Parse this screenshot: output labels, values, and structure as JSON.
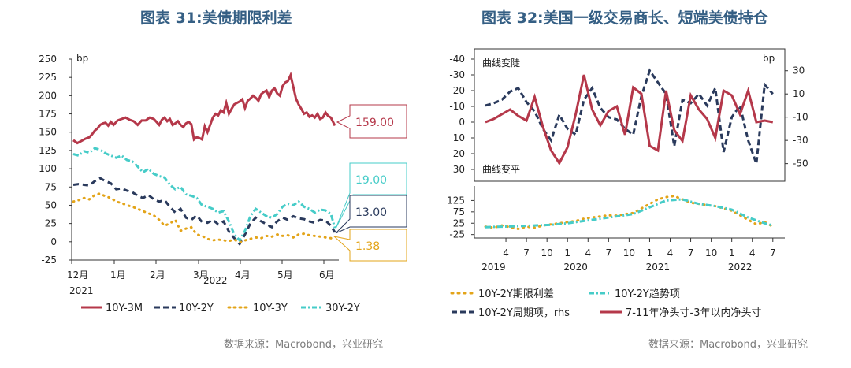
{
  "colors": {
    "title": "#355f84",
    "red": "#b5384a",
    "navy": "#2a3a5c",
    "gold": "#e3a419",
    "cyan": "#46ccc8",
    "text": "#222222",
    "source": "#7b7b7b"
  },
  "left_title": "图表 31:美债期限利差",
  "right_title": "图表 32:美国一级交易商长、短端美债持仓",
  "left_source": "数据来源：Macrobond，兴业研究",
  "right_source": "数据来源：Macrobond，兴业研究",
  "chart_data": [
    {
      "type": "line",
      "unit_label": "bp",
      "ylim": [
        -25,
        250
      ],
      "yticks": [
        "250",
        "225",
        "200",
        "175",
        "150",
        "125",
        "100",
        "75",
        "50",
        "25",
        "0",
        "-25"
      ],
      "xticks": [
        "12月",
        "1月",
        "2月",
        "3月",
        "4月",
        "5月",
        "6月"
      ],
      "year_labels": [
        "2021",
        "2022"
      ],
      "legend": [
        "10Y-3M",
        "10Y-2Y",
        "10Y-3Y",
        "30Y-2Y"
      ],
      "callouts": [
        "159.00",
        "19.00",
        "13.00",
        "1.38"
      ],
      "series": [
        {
          "name": "10Y-3M",
          "x": [
            0,
            3,
            6,
            9,
            12,
            14,
            16,
            18,
            20,
            22,
            24,
            26,
            28,
            30,
            33,
            36,
            39,
            42,
            45,
            48,
            51,
            54,
            57,
            60,
            62,
            64,
            66,
            68,
            70,
            72,
            74,
            76,
            78,
            80,
            82,
            84,
            86,
            88,
            90,
            92,
            94,
            96,
            98,
            100,
            102,
            104,
            106,
            108,
            110,
            112,
            114,
            116,
            118,
            120,
            122,
            124,
            126,
            128,
            130,
            132,
            134,
            136,
            138,
            140,
            142,
            144,
            146,
            148,
            150,
            152,
            154,
            156,
            158,
            160,
            162,
            164,
            166,
            168,
            170,
            172,
            174,
            176,
            178,
            180,
            182,
            184,
            186,
            188,
            190,
            192,
            195
          ],
          "y": [
            139,
            135,
            138,
            141,
            143,
            147,
            152,
            155,
            160,
            162,
            163,
            159,
            164,
            160,
            166,
            168,
            170,
            167,
            165,
            160,
            166,
            166,
            170,
            168,
            164,
            160,
            167,
            170,
            165,
            168,
            160,
            162,
            165,
            160,
            157,
            162,
            164,
            161,
            140,
            143,
            142,
            140,
            158,
            150,
            160,
            170,
            175,
            173,
            180,
            177,
            190,
            175,
            182,
            188,
            190,
            192,
            195,
            183,
            193,
            196,
            200,
            197,
            193,
            202,
            205,
            207,
            198,
            207,
            210,
            203,
            200,
            213,
            218,
            220,
            228,
            212,
            196,
            188,
            182,
            175,
            177,
            171,
            173,
            170,
            175,
            168,
            170,
            177,
            172,
            170,
            159
          ]
        },
        {
          "name": "10Y-2Y",
          "x": [
            0,
            4,
            8,
            12,
            16,
            20,
            24,
            28,
            32,
            36,
            40,
            44,
            48,
            52,
            56,
            60,
            64,
            68,
            72,
            76,
            80,
            84,
            88,
            92,
            96,
            100,
            104,
            108,
            112,
            116,
            120,
            124,
            128,
            132,
            136,
            140,
            144,
            148,
            152,
            156,
            160,
            164,
            168,
            172,
            176,
            180,
            184,
            188,
            192,
            195
          ],
          "y": [
            78,
            79,
            78,
            77,
            83,
            87,
            83,
            80,
            72,
            73,
            70,
            68,
            63,
            60,
            64,
            58,
            55,
            57,
            48,
            40,
            45,
            33,
            30,
            36,
            27,
            26,
            30,
            24,
            28,
            14,
            5,
            -3,
            10,
            25,
            33,
            28,
            24,
            20,
            28,
            33,
            30,
            35,
            32,
            31,
            28,
            26,
            30,
            29,
            22,
            13
          ]
        },
        {
          "name": "10Y-3Y",
          "x": [
            0,
            4,
            8,
            12,
            16,
            20,
            24,
            28,
            32,
            36,
            40,
            44,
            48,
            52,
            56,
            60,
            64,
            68,
            72,
            76,
            80,
            84,
            88,
            92,
            96,
            100,
            104,
            108,
            112,
            116,
            120,
            124,
            128,
            132,
            136,
            140,
            144,
            148,
            152,
            156,
            160,
            164,
            168,
            172,
            176,
            180,
            184,
            188,
            192,
            195
          ],
          "y": [
            55,
            57,
            60,
            58,
            64,
            66,
            62,
            60,
            55,
            53,
            50,
            48,
            45,
            42,
            39,
            36,
            30,
            22,
            25,
            30,
            15,
            18,
            20,
            10,
            8,
            4,
            2,
            3,
            2,
            1,
            3,
            -1,
            2,
            4,
            6,
            5,
            8,
            7,
            10,
            8,
            9,
            6,
            10,
            11,
            9,
            8,
            7,
            6,
            5,
            1.38
          ]
        },
        {
          "name": "30Y-2Y",
          "x": [
            0,
            4,
            8,
            12,
            16,
            20,
            24,
            28,
            32,
            36,
            40,
            44,
            48,
            52,
            56,
            60,
            64,
            68,
            72,
            76,
            80,
            84,
            88,
            92,
            96,
            100,
            104,
            108,
            112,
            116,
            120,
            124,
            128,
            132,
            136,
            140,
            144,
            148,
            152,
            156,
            160,
            164,
            168,
            172,
            176,
            180,
            184,
            188,
            192,
            195
          ],
          "y": [
            120,
            118,
            124,
            122,
            128,
            126,
            121,
            118,
            115,
            118,
            112,
            110,
            103,
            95,
            100,
            93,
            90,
            88,
            78,
            72,
            75,
            65,
            63,
            60,
            50,
            48,
            45,
            40,
            42,
            28,
            10,
            2,
            15,
            35,
            45,
            40,
            35,
            33,
            38,
            48,
            52,
            50,
            55,
            48,
            45,
            40,
            44,
            43,
            38,
            19
          ]
        }
      ]
    },
    {
      "type": "line",
      "unit_label": "bp",
      "upper_panel": {
        "ylim_left": [
          30,
          -40
        ],
        "yticks_left": [
          "-40",
          "-30",
          "-20",
          "-10",
          "0",
          "10",
          "20",
          "30"
        ],
        "ylim_right": [
          -55,
          40
        ],
        "yticks_right": [
          "30",
          "10",
          "-10",
          "-30",
          "-50"
        ],
        "annotations": [
          "曲线变陡",
          "曲线变平"
        ]
      },
      "lower_panel": {
        "ylim": [
          -40,
          175
        ],
        "yticks": [
          "125",
          "75",
          "25",
          "-25"
        ]
      },
      "xticks": [
        "4",
        "7",
        "10",
        "1",
        "4",
        "7",
        "10",
        "1",
        "4",
        "7",
        "10",
        "1",
        "4",
        "7"
      ],
      "year_labels": [
        "2019",
        "2020",
        "2021",
        "2022"
      ],
      "legend": [
        "10Y-2Y期限利差",
        "10Y-2Y趋势项",
        "10Y-2Y周期项，rhs",
        "7-11年净头寸-3年以内净头寸"
      ],
      "series": [
        {
          "name": "7-11年净头寸-3年以内净头寸",
          "axis": "left",
          "x": [
            2019.0,
            2019.1,
            2019.2,
            2019.3,
            2019.4,
            2019.5,
            2019.6,
            2019.7,
            2019.8,
            2019.9,
            2020.0,
            2020.1,
            2020.2,
            2020.3,
            2020.4,
            2020.5,
            2020.6,
            2020.7,
            2020.8,
            2020.9,
            2021.0,
            2021.1,
            2021.2,
            2021.3,
            2021.4,
            2021.5,
            2021.6,
            2021.7,
            2021.8,
            2021.9,
            2022.0,
            2022.1,
            2022.2,
            2022.3,
            2022.4,
            2022.5
          ],
          "y": [
            0,
            -2,
            -5,
            -8,
            -4,
            -1,
            -16,
            3,
            18,
            26,
            16,
            -5,
            -30,
            -8,
            2,
            -7,
            -10,
            8,
            -22,
            -18,
            15,
            18,
            -20,
            5,
            12,
            -17,
            -8,
            -2,
            10,
            -20,
            -17,
            -5,
            -20,
            0,
            -1,
            0
          ]
        },
        {
          "name": "10Y-2Y周期项，rhs",
          "axis": "right",
          "x": [
            2019.0,
            2019.1,
            2019.2,
            2019.3,
            2019.4,
            2019.5,
            2019.6,
            2019.7,
            2019.8,
            2019.9,
            2020.0,
            2020.1,
            2020.2,
            2020.3,
            2020.4,
            2020.5,
            2020.6,
            2020.7,
            2020.8,
            2020.9,
            2021.0,
            2021.1,
            2021.2,
            2021.3,
            2021.4,
            2021.5,
            2021.6,
            2021.7,
            2021.8,
            2021.9,
            2022.0,
            2022.1,
            2022.2,
            2022.3,
            2022.4,
            2022.5
          ],
          "y": [
            0,
            2,
            5,
            12,
            15,
            3,
            -5,
            -20,
            -30,
            -8,
            -20,
            -25,
            5,
            15,
            -2,
            -10,
            -12,
            -20,
            -25,
            8,
            30,
            20,
            10,
            -35,
            5,
            2,
            10,
            0,
            15,
            -40,
            -10,
            0,
            -30,
            -50,
            18,
            10
          ]
        },
        {
          "name": "10Y-2Y期限利差",
          "axis": "lower",
          "x": [
            2019.0,
            2019.1,
            2019.2,
            2019.3,
            2019.4,
            2019.5,
            2019.6,
            2019.7,
            2019.8,
            2019.9,
            2020.0,
            2020.1,
            2020.2,
            2020.3,
            2020.4,
            2020.5,
            2020.6,
            2020.7,
            2020.8,
            2020.9,
            2021.0,
            2021.1,
            2021.2,
            2021.3,
            2021.4,
            2021.5,
            2021.6,
            2021.7,
            2021.8,
            2021.9,
            2022.0,
            2022.1,
            2022.2,
            2022.3,
            2022.4,
            2022.5
          ],
          "y": [
            10,
            5,
            15,
            8,
            0,
            10,
            5,
            15,
            20,
            25,
            30,
            35,
            45,
            50,
            55,
            60,
            58,
            65,
            70,
            90,
            110,
            130,
            140,
            145,
            130,
            115,
            110,
            105,
            100,
            90,
            80,
            60,
            40,
            20,
            30,
            10
          ]
        },
        {
          "name": "10Y-2Y趋势项",
          "axis": "lower",
          "x": [
            2019.0,
            2019.2,
            2019.4,
            2019.6,
            2019.8,
            2020.0,
            2020.2,
            2020.4,
            2020.6,
            2020.8,
            2021.0,
            2021.2,
            2021.4,
            2021.6,
            2021.8,
            2022.0,
            2022.2,
            2022.4,
            2022.5
          ],
          "y": [
            8,
            10,
            12,
            15,
            18,
            25,
            35,
            45,
            55,
            65,
            95,
            125,
            130,
            110,
            100,
            85,
            50,
            25,
            15
          ]
        }
      ]
    }
  ]
}
